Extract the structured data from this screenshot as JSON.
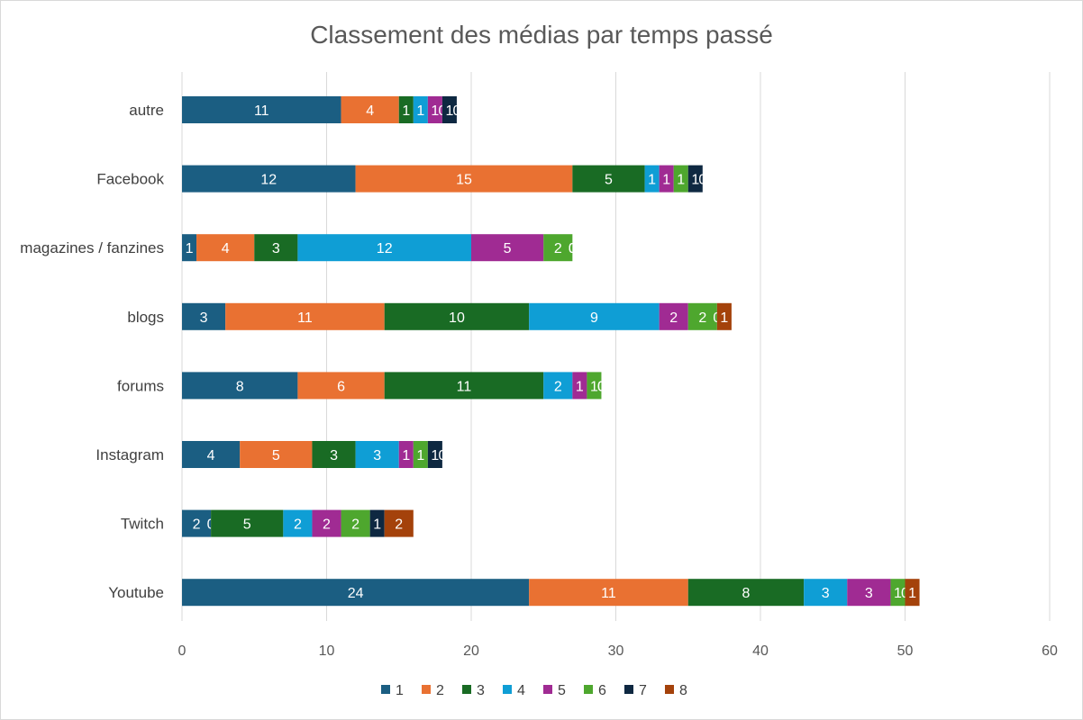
{
  "chart_data": {
    "type": "bar",
    "orientation": "horizontal",
    "stacked": true,
    "title": "Classement des médias par temps passé",
    "xlabel": "",
    "ylabel": "",
    "xlim": [
      0,
      60
    ],
    "x_ticks": [
      0,
      10,
      20,
      30,
      40,
      50,
      60
    ],
    "grid": "vertical",
    "legend_position": "bottom",
    "categories": [
      "autre",
      "Facebook",
      "magazines / fanzines",
      "blogs",
      "forums",
      "Instagram",
      "Twitch",
      "Youtube"
    ],
    "series": [
      {
        "name": "1",
        "color": "#1b5e82",
        "values": [
          11,
          12,
          1,
          3,
          8,
          4,
          2,
          24
        ]
      },
      {
        "name": "2",
        "color": "#e97132",
        "values": [
          4,
          15,
          4,
          11,
          6,
          5,
          0,
          11
        ]
      },
      {
        "name": "3",
        "color": "#196b24",
        "values": [
          1,
          5,
          3,
          10,
          11,
          3,
          5,
          8
        ]
      },
      {
        "name": "4",
        "color": "#0f9ed5",
        "values": [
          1,
          1,
          12,
          9,
          2,
          3,
          2,
          3
        ]
      },
      {
        "name": "5",
        "color": "#a02b93",
        "values": [
          1,
          1,
          5,
          2,
          1,
          1,
          2,
          3
        ]
      },
      {
        "name": "6",
        "color": "#4ea72e",
        "values": [
          0,
          1,
          2,
          2,
          1,
          1,
          2,
          1
        ]
      },
      {
        "name": "7",
        "color": "#0e2841",
        "values": [
          1,
          1,
          0,
          0,
          0,
          1,
          1,
          0
        ]
      },
      {
        "name": "8",
        "color": "#a4420b",
        "values": [
          0,
          0,
          0,
          1,
          0,
          0,
          2,
          1
        ]
      }
    ]
  }
}
